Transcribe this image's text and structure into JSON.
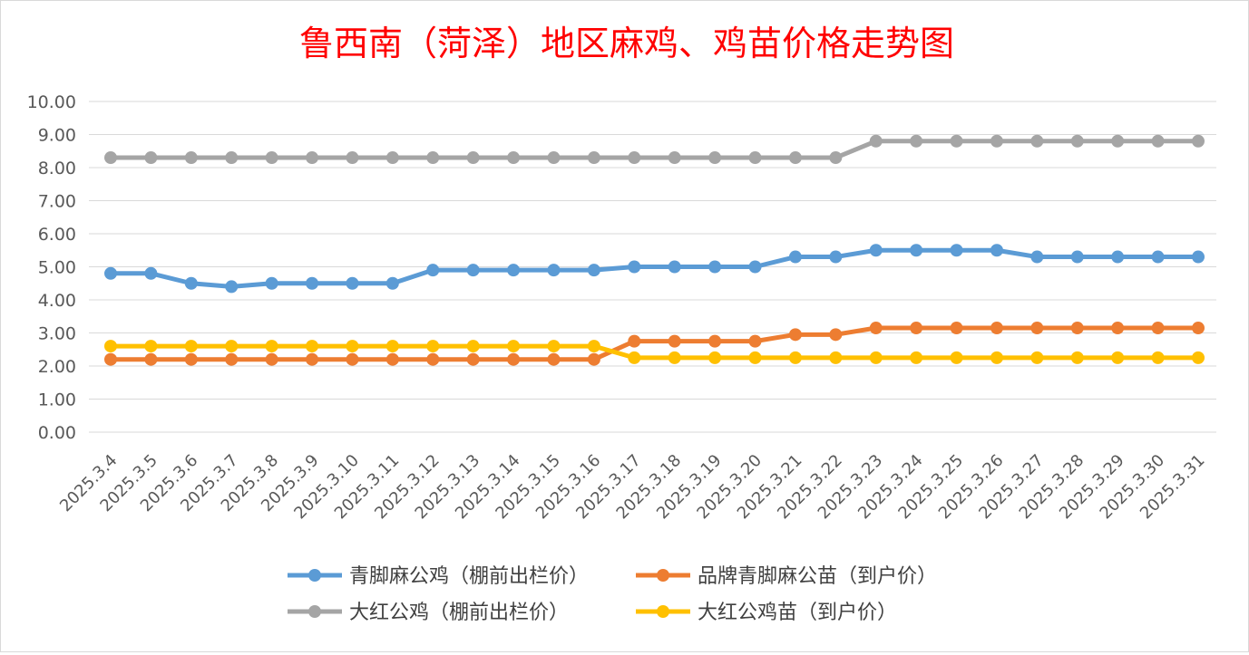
{
  "chart_data": {
    "type": "line",
    "title": "鲁西南（菏泽）地区麻鸡、鸡苗价格走势图",
    "title_color": "#ff0000",
    "ylim": [
      0,
      10
    ],
    "yticks": [
      "0.00",
      "1.00",
      "2.00",
      "3.00",
      "4.00",
      "5.00",
      "6.00",
      "7.00",
      "8.00",
      "9.00",
      "10.00"
    ],
    "grid": true,
    "legend_position": "bottom",
    "categories": [
      "2025.3.4",
      "2025.3.5",
      "2025.3.6",
      "2025.3.7",
      "2025.3.8",
      "2025.3.9",
      "2025.3.10",
      "2025.3.11",
      "2025.3.12",
      "2025.3.13",
      "2025.3.14",
      "2025.3.15",
      "2025.3.16",
      "2025.3.17",
      "2025.3.18",
      "2025.3.19",
      "2025.3.20",
      "2025.3.21",
      "2025.3.22",
      "2025.3.23",
      "2025.3.24",
      "2025.3.25",
      "2025.3.26",
      "2025.3.27",
      "2025.3.28",
      "2025.3.29",
      "2025.3.30",
      "2025.3.31"
    ],
    "series": [
      {
        "name": "青脚麻公鸡（棚前出栏价）",
        "color": "#5b9bd5",
        "values": [
          4.8,
          4.8,
          4.5,
          4.4,
          4.5,
          4.5,
          4.5,
          4.5,
          4.9,
          4.9,
          4.9,
          4.9,
          4.9,
          5.0,
          5.0,
          5.0,
          5.0,
          5.3,
          5.3,
          5.5,
          5.5,
          5.5,
          5.5,
          5.3,
          5.3,
          5.3,
          5.3,
          5.3
        ]
      },
      {
        "name": "品牌青脚麻公苗（到户价）",
        "color": "#ed7d31",
        "values": [
          2.2,
          2.2,
          2.2,
          2.2,
          2.2,
          2.2,
          2.2,
          2.2,
          2.2,
          2.2,
          2.2,
          2.2,
          2.2,
          2.75,
          2.75,
          2.75,
          2.75,
          2.95,
          2.95,
          3.15,
          3.15,
          3.15,
          3.15,
          3.15,
          3.15,
          3.15,
          3.15,
          3.15
        ]
      },
      {
        "name": "大红公鸡（棚前出栏价）",
        "color": "#a5a5a5",
        "values": [
          8.3,
          8.3,
          8.3,
          8.3,
          8.3,
          8.3,
          8.3,
          8.3,
          8.3,
          8.3,
          8.3,
          8.3,
          8.3,
          8.3,
          8.3,
          8.3,
          8.3,
          8.3,
          8.3,
          8.8,
          8.8,
          8.8,
          8.8,
          8.8,
          8.8,
          8.8,
          8.8,
          8.8
        ]
      },
      {
        "name": "大红公鸡苗（到户价）",
        "color": "#ffc000",
        "values": [
          2.6,
          2.6,
          2.6,
          2.6,
          2.6,
          2.6,
          2.6,
          2.6,
          2.6,
          2.6,
          2.6,
          2.6,
          2.6,
          2.25,
          2.25,
          2.25,
          2.25,
          2.25,
          2.25,
          2.25,
          2.25,
          2.25,
          2.25,
          2.25,
          2.25,
          2.25,
          2.25,
          2.25
        ]
      }
    ]
  }
}
